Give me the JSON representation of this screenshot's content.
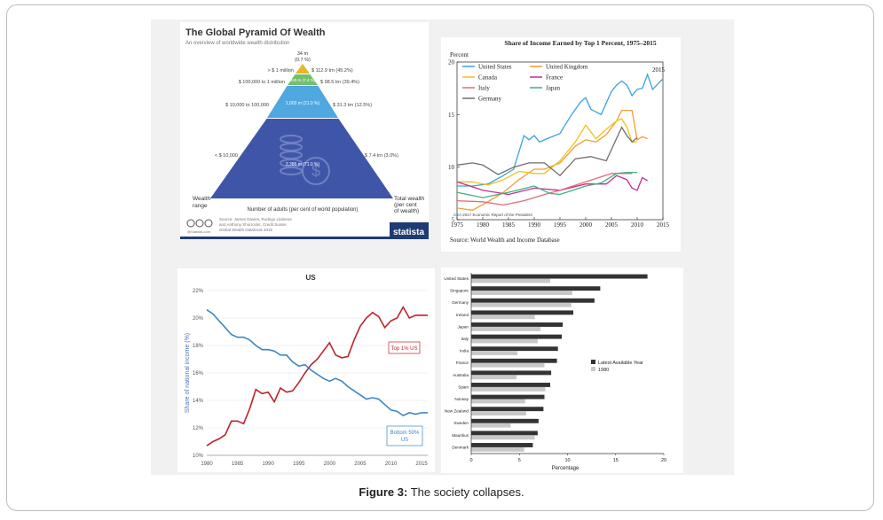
{
  "caption": {
    "label": "Figure 3:",
    "text": " The society collapses."
  },
  "colors": {
    "pyramid_top": "#73c06c",
    "pyramid_mid": "#4fa8e0",
    "pyramid_bottom": "#3f56a8",
    "statista_bar": "#1d3c73",
    "us_top1": "#c0212b",
    "us_bottom50": "#3d85c6"
  },
  "chart_data": [
    {
      "type": "pyramid",
      "title": "The Global Pyramid Of Wealth",
      "subtitle": "An overview of worldwide wealth distribution",
      "top_label": "34 m",
      "top_pct": "(0.7 %)",
      "tiers": [
        {
          "range": "> $ 1 million",
          "adults": "",
          "wealth": "$ 112.9 trn (45.2%)"
        },
        {
          "range": "$ 100,000 to 1 million",
          "adults": "349 m (7.4 %)",
          "wealth": "$ 98.5 trn (39.4%)"
        },
        {
          "range": "$ 10,000 to 100,000",
          "adults": "1,003 m (21.0 %)",
          "wealth": "$ 31.3 trn (12.5%)"
        },
        {
          "range": "< $ 10,000",
          "adults": "3,386 m (71.0 %)",
          "wealth": "$ 7.4 trn (3.0%)"
        }
      ],
      "left_axis": "Wealth range",
      "bottom_axis": "Number of adults (per cent of world population)",
      "right_axis": "Total wealth (per cent of wealth)",
      "source": "Source: James Davies, Rodrigo Lluberas and Anthony Shorrocks, Credit Suisse Global Wealth Databook 2015",
      "credit": "@Statista.com",
      "brand": "statista"
    },
    {
      "type": "line",
      "title": "Share of Income Earned by Top 1 Percent, 1975–2015",
      "ylabel": "Percent",
      "ylim": [
        5,
        20
      ],
      "yticks": [
        5,
        10,
        15,
        20
      ],
      "xlim": [
        1975,
        2015
      ],
      "xticks": [
        1975,
        1980,
        1985,
        1990,
        1995,
        2000,
        2005,
        2010,
        2015
      ],
      "annotation": "2015",
      "note": "CEA 2017 Economic Report of the President",
      "source": "Source: World Wealth and Income Database",
      "series": [
        {
          "name": "United States",
          "color": "#3aa3e0",
          "x": [
            1975,
            1978,
            1981,
            1984,
            1986,
            1988,
            1989,
            1990,
            1991,
            1993,
            1995,
            1997,
            1999,
            2000,
            2001,
            2003,
            2005,
            2006,
            2007,
            2008,
            2009,
            2010,
            2011,
            2012,
            2013,
            2014,
            2015
          ],
          "values": [
            8.2,
            8.2,
            8.4,
            9.2,
            9.8,
            13,
            12.6,
            13,
            12.4,
            12.8,
            13.2,
            14.8,
            16.2,
            16.6,
            15.5,
            15,
            17.2,
            17.8,
            18.2,
            17.8,
            16.8,
            17.4,
            17.5,
            18.8,
            17.4,
            17.9,
            18.4
          ]
        },
        {
          "name": "United Kingdom",
          "color": "#f39c34",
          "x": [
            1975,
            1978,
            1981,
            1984,
            1987,
            1990,
            1992,
            1995,
            1998,
            2000,
            2002,
            2004,
            2006,
            2007,
            2008,
            2009,
            2010,
            2011,
            2012
          ],
          "values": [
            6.1,
            5.9,
            6.7,
            7.6,
            8.8,
            9.8,
            9.8,
            10.4,
            12,
            12.6,
            12.4,
            13.1,
            14.4,
            15.4,
            15.4,
            15.4,
            12.6,
            12.9,
            12.7
          ]
        },
        {
          "name": "Canada",
          "color": "#f1c21a",
          "x": [
            1975,
            1978,
            1981,
            1984,
            1987,
            1990,
            1992,
            1995,
            1998,
            2000,
            2002,
            2004,
            2006,
            2007,
            2008,
            2009,
            2010
          ],
          "values": [
            8.6,
            8.6,
            8.3,
            8.8,
            9.6,
            9.4,
            9.4,
            10.6,
            12.4,
            14,
            12.7,
            13.6,
            14.4,
            14.6,
            13.8,
            12.4,
            12.4
          ]
        },
        {
          "name": "France",
          "color": "#c72c92",
          "x": [
            1975,
            1980,
            1985,
            1990,
            1995,
            2000,
            2004,
            2006,
            2007,
            2008,
            2009,
            2010,
            2011,
            2012
          ],
          "values": [
            8.6,
            7.8,
            7.4,
            8,
            7.8,
            8.4,
            8.4,
            9.2,
            9,
            8.8,
            8,
            7.8,
            9,
            8.7
          ]
        },
        {
          "name": "Italy",
          "color": "#e46a78",
          "x": [
            1975,
            1980,
            1984,
            1988,
            1992,
            1995,
            2000,
            2005,
            2009
          ],
          "values": [
            6.8,
            6.7,
            6.4,
            6.8,
            7.4,
            7.8,
            8.6,
            9.4,
            9.4
          ]
        },
        {
          "name": "Japan",
          "color": "#3db17c",
          "x": [
            1975,
            1980,
            1985,
            1990,
            1993,
            1995,
            2000,
            2003,
            2006,
            2008,
            2010
          ],
          "values": [
            7.6,
            7.1,
            7.6,
            8.2,
            7.5,
            7.4,
            8.2,
            8.5,
            9.4,
            9.5,
            9.5
          ]
        },
        {
          "name": "Germany",
          "color": "#6e6e6e",
          "x": [
            1975,
            1978,
            1980,
            1983,
            1986,
            1989,
            1992,
            1995,
            1998,
            2001,
            2004,
            2007,
            2008,
            2009,
            2010
          ],
          "values": [
            10.2,
            10.4,
            10.2,
            9.3,
            10,
            10.4,
            10.4,
            9.2,
            10.8,
            11,
            10.6,
            13.8,
            13,
            12.4,
            12.8
          ]
        }
      ]
    },
    {
      "type": "line",
      "title": "US",
      "ylabel": "Share of national income (%)",
      "ylim": [
        10,
        22
      ],
      "yticks": [
        "10%",
        "12%",
        "14%",
        "16%",
        "18%",
        "20%",
        "22%"
      ],
      "xlim": [
        1980,
        2016
      ],
      "xticks": [
        1980,
        1985,
        1990,
        1995,
        2000,
        2005,
        2010,
        2015
      ],
      "series": [
        {
          "name": "Top 1% US",
          "color": "#c0212b",
          "x": [
            1980,
            1981,
            1982,
            1983,
            1984,
            1985,
            1986,
            1987,
            1988,
            1989,
            1990,
            1991,
            1992,
            1993,
            1994,
            1995,
            1996,
            1997,
            1998,
            1999,
            2000,
            2001,
            2002,
            2003,
            2004,
            2005,
            2006,
            2007,
            2008,
            2009,
            2010,
            2011,
            2012,
            2013,
            2014,
            2015,
            2016
          ],
          "values": [
            10.7,
            11.0,
            11.2,
            11.5,
            12.5,
            12.5,
            12.3,
            13.4,
            14.8,
            14.5,
            14.6,
            13.9,
            14.9,
            14.6,
            14.7,
            15.3,
            16.0,
            16.6,
            17.0,
            17.6,
            18.2,
            17.3,
            17.1,
            17.2,
            18.4,
            19.4,
            20.0,
            20.4,
            20.1,
            19.3,
            19.8,
            20.0,
            20.8,
            20.0,
            20.2,
            20.2,
            20.2
          ]
        },
        {
          "name": "Bottom 50% US",
          "color": "#3d85c6",
          "x": [
            1980,
            1981,
            1982,
            1983,
            1984,
            1985,
            1986,
            1987,
            1988,
            1989,
            1990,
            1991,
            1992,
            1993,
            1994,
            1995,
            1996,
            1997,
            1998,
            1999,
            2000,
            2001,
            2002,
            2003,
            2004,
            2005,
            2006,
            2007,
            2008,
            2009,
            2010,
            2011,
            2012,
            2013,
            2014,
            2015,
            2016
          ],
          "values": [
            20.6,
            20.3,
            19.8,
            19.3,
            18.8,
            18.6,
            18.6,
            18.4,
            18.0,
            17.7,
            17.7,
            17.6,
            17.3,
            17.3,
            16.8,
            16.5,
            16.6,
            16.2,
            15.9,
            15.6,
            15.4,
            15.6,
            15.4,
            15.0,
            14.7,
            14.4,
            14.1,
            14.2,
            14.1,
            13.7,
            13.3,
            13.2,
            12.9,
            13.1,
            13.0,
            13.1,
            13.1
          ]
        }
      ]
    },
    {
      "type": "bar",
      "orientation": "horizontal",
      "categories": [
        "United States",
        "Singapore",
        "Germany",
        "Ireland",
        "Japan",
        "Italy",
        "India",
        "France",
        "Australia",
        "Spain",
        "Norway",
        "New Zealand",
        "Sweden",
        "Mauritius",
        "Denmark"
      ],
      "series": [
        {
          "name": "Latest Available Year",
          "color": "#333333",
          "values": [
            18.3,
            13.4,
            12.8,
            10.6,
            9.5,
            9.4,
            9.0,
            8.9,
            8.3,
            8.2,
            7.6,
            7.5,
            7.0,
            6.9,
            6.4
          ]
        },
        {
          "name": "1980",
          "color": "#c8c8c8",
          "values": [
            8.2,
            10.5,
            10.4,
            6.6,
            7.2,
            6.9,
            4.8,
            7.6,
            4.7,
            7.7,
            5.6,
            5.7,
            4.1,
            6.6,
            5.5
          ]
        }
      ],
      "xlabel": "Percentage",
      "xlim": [
        0,
        20
      ],
      "xticks": [
        0,
        5,
        10,
        15,
        20
      ]
    }
  ]
}
